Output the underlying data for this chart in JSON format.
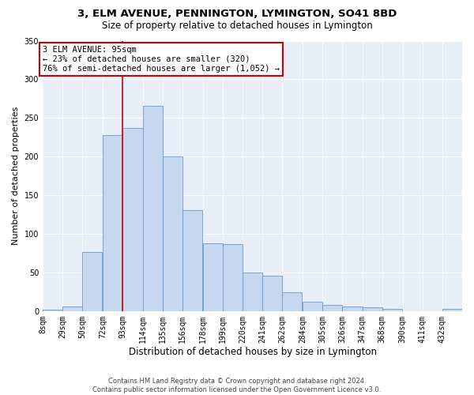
{
  "title": "3, ELM AVENUE, PENNINGTON, LYMINGTON, SO41 8BD",
  "subtitle": "Size of property relative to detached houses in Lymington",
  "xlabel": "Distribution of detached houses by size in Lymington",
  "ylabel": "Number of detached properties",
  "bar_color": "#c5d8f0",
  "bar_edge_color": "#6899cc",
  "bg_color": "#e8eef8",
  "grid_color": "#ffffff",
  "categories": [
    "8sqm",
    "29sqm",
    "50sqm",
    "72sqm",
    "93sqm",
    "114sqm",
    "135sqm",
    "156sqm",
    "178sqm",
    "199sqm",
    "220sqm",
    "241sqm",
    "262sqm",
    "284sqm",
    "305sqm",
    "326sqm",
    "347sqm",
    "368sqm",
    "390sqm",
    "411sqm",
    "432sqm"
  ],
  "values": [
    2,
    6,
    77,
    228,
    237,
    266,
    200,
    131,
    88,
    87,
    50,
    46,
    24,
    12,
    8,
    6,
    5,
    3,
    0,
    0,
    3
  ],
  "ylim": [
    0,
    350
  ],
  "yticks": [
    0,
    50,
    100,
    150,
    200,
    250,
    300,
    350
  ],
  "bin_starts": [
    8,
    29,
    50,
    72,
    93,
    114,
    135,
    156,
    178,
    199,
    220,
    241,
    262,
    284,
    305,
    326,
    347,
    368,
    390,
    411,
    432
  ],
  "bin_width": 21,
  "vline_x": 93,
  "vline_color": "#cc0000",
  "annotation_text": "3 ELM AVENUE: 95sqm\n← 23% of detached houses are smaller (320)\n76% of semi-detached houses are larger (1,052) →",
  "annotation_box_facecolor": "#ffffff",
  "annotation_box_edgecolor": "#cc0000",
  "footer": "Contains HM Land Registry data © Crown copyright and database right 2024.\nContains public sector information licensed under the Open Government Licence v3.0.",
  "title_fontsize": 9.5,
  "subtitle_fontsize": 8.5,
  "xlabel_fontsize": 8.5,
  "ylabel_fontsize": 8,
  "tick_fontsize": 7,
  "annotation_fontsize": 7.5,
  "footer_fontsize": 6
}
